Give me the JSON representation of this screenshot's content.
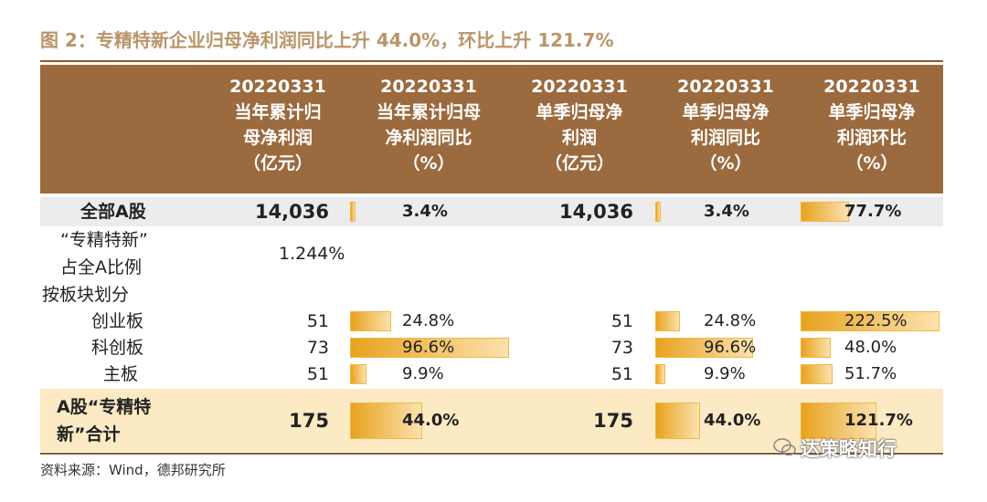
{
  "title": "图 2：专精特新企业归母净利润同比上升 44.0%，环比上升 121.7%",
  "columns": [
    [
      "20220331",
      "当年累计归",
      "母净利润",
      "（亿元）"
    ],
    [
      "20220331",
      "当年累计归母",
      "净利润同比",
      "（%）"
    ],
    [
      "20220331",
      "单季归母净",
      "利润",
      "（亿元）"
    ],
    [
      "20220331",
      "单季归母净",
      "利润同比",
      "（%）"
    ],
    [
      "20220331",
      "单季归母净",
      "利润环比",
      "（%）"
    ]
  ],
  "chart_data": {
    "type": "table",
    "rows": [
      {
        "label": [
          "全部A股"
        ],
        "cum_profit": "14,036",
        "cum_yoy": 3.4,
        "q_profit": "14,036",
        "q_yoy": 3.4,
        "q_qoq": 77.7
      },
      {
        "label": [
          "“专精特新”",
          "占全A比例"
        ],
        "cum_profit": "1.244%"
      },
      {
        "label": [
          "按板块划分"
        ]
      },
      {
        "label": [
          "创业板"
        ],
        "cum_profit": "51",
        "cum_yoy": 24.8,
        "q_profit": "51",
        "q_yoy": 24.8,
        "q_qoq": 222.5
      },
      {
        "label": [
          "科创板"
        ],
        "cum_profit": "73",
        "cum_yoy": 96.6,
        "q_profit": "73",
        "q_yoy": 96.6,
        "q_qoq": 48.0
      },
      {
        "label": [
          "主板"
        ],
        "cum_profit": "51",
        "cum_yoy": 9.9,
        "q_profit": "51",
        "q_yoy": 9.9,
        "q_qoq": 51.7
      },
      {
        "label": [
          "A股“专精特",
          "新”合计"
        ],
        "cum_profit": "175",
        "cum_yoy": 44.0,
        "q_profit": "175",
        "q_yoy": 44.0,
        "q_qoq": 121.7
      }
    ],
    "pct_labels": {
      "r0": [
        "3.4%",
        "3.4%",
        "77.7%"
      ],
      "r3": [
        "24.8%",
        "24.8%",
        "222.5%"
      ],
      "r4": [
        "96.6%",
        "96.6%",
        "48.0%"
      ],
      "r5": [
        "9.9%",
        "9.9%",
        "51.7%"
      ],
      "r6": [
        "44.0%",
        "44.0%",
        "121.7%"
      ]
    }
  },
  "source": "资料来源：Wind，德邦研究所",
  "watermark": "达策略知行"
}
